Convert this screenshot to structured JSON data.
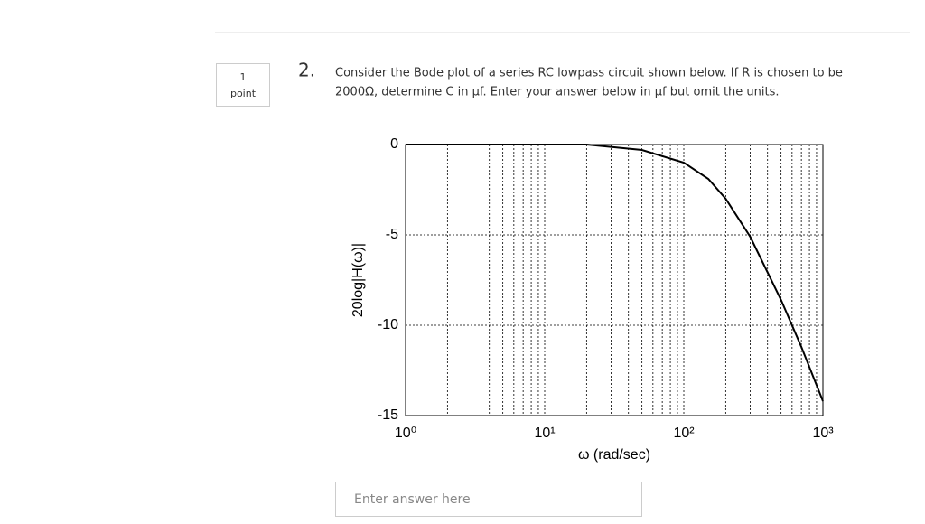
{
  "sidebar": {
    "points": "1",
    "unit": "point"
  },
  "question": {
    "number": "2.",
    "line1": "Consider the Bode plot of a series RC lowpass circuit shown below. If R is chosen to be",
    "line2": "2000Ω, determine C in μf. Enter your answer below in μf but omit the units."
  },
  "chart_data": {
    "type": "line",
    "xlabel": "ω (rad/sec)",
    "ylabel": "20log|H(ω)|",
    "x": [
      1,
      10,
      20,
      50,
      100,
      150,
      200,
      300,
      500,
      700,
      1000
    ],
    "values": [
      0,
      0,
      0,
      -0.3,
      -1.0,
      -1.9,
      -3.0,
      -5.1,
      -8.6,
      -11.2,
      -14.2
    ],
    "color": "#000000",
    "xscale": "log",
    "xlim": [
      1,
      1000
    ],
    "ylim": [
      -15,
      0
    ],
    "xticks": [
      {
        "value": 1,
        "label": "10⁰"
      },
      {
        "value": 10,
        "label": "10¹"
      },
      {
        "value": 100,
        "label": "10²"
      },
      {
        "value": 1000,
        "label": "10³"
      }
    ],
    "yticks": [
      0,
      -5,
      -10,
      -15
    ],
    "grid": true
  },
  "answer": {
    "placeholder": "Enter answer here"
  }
}
